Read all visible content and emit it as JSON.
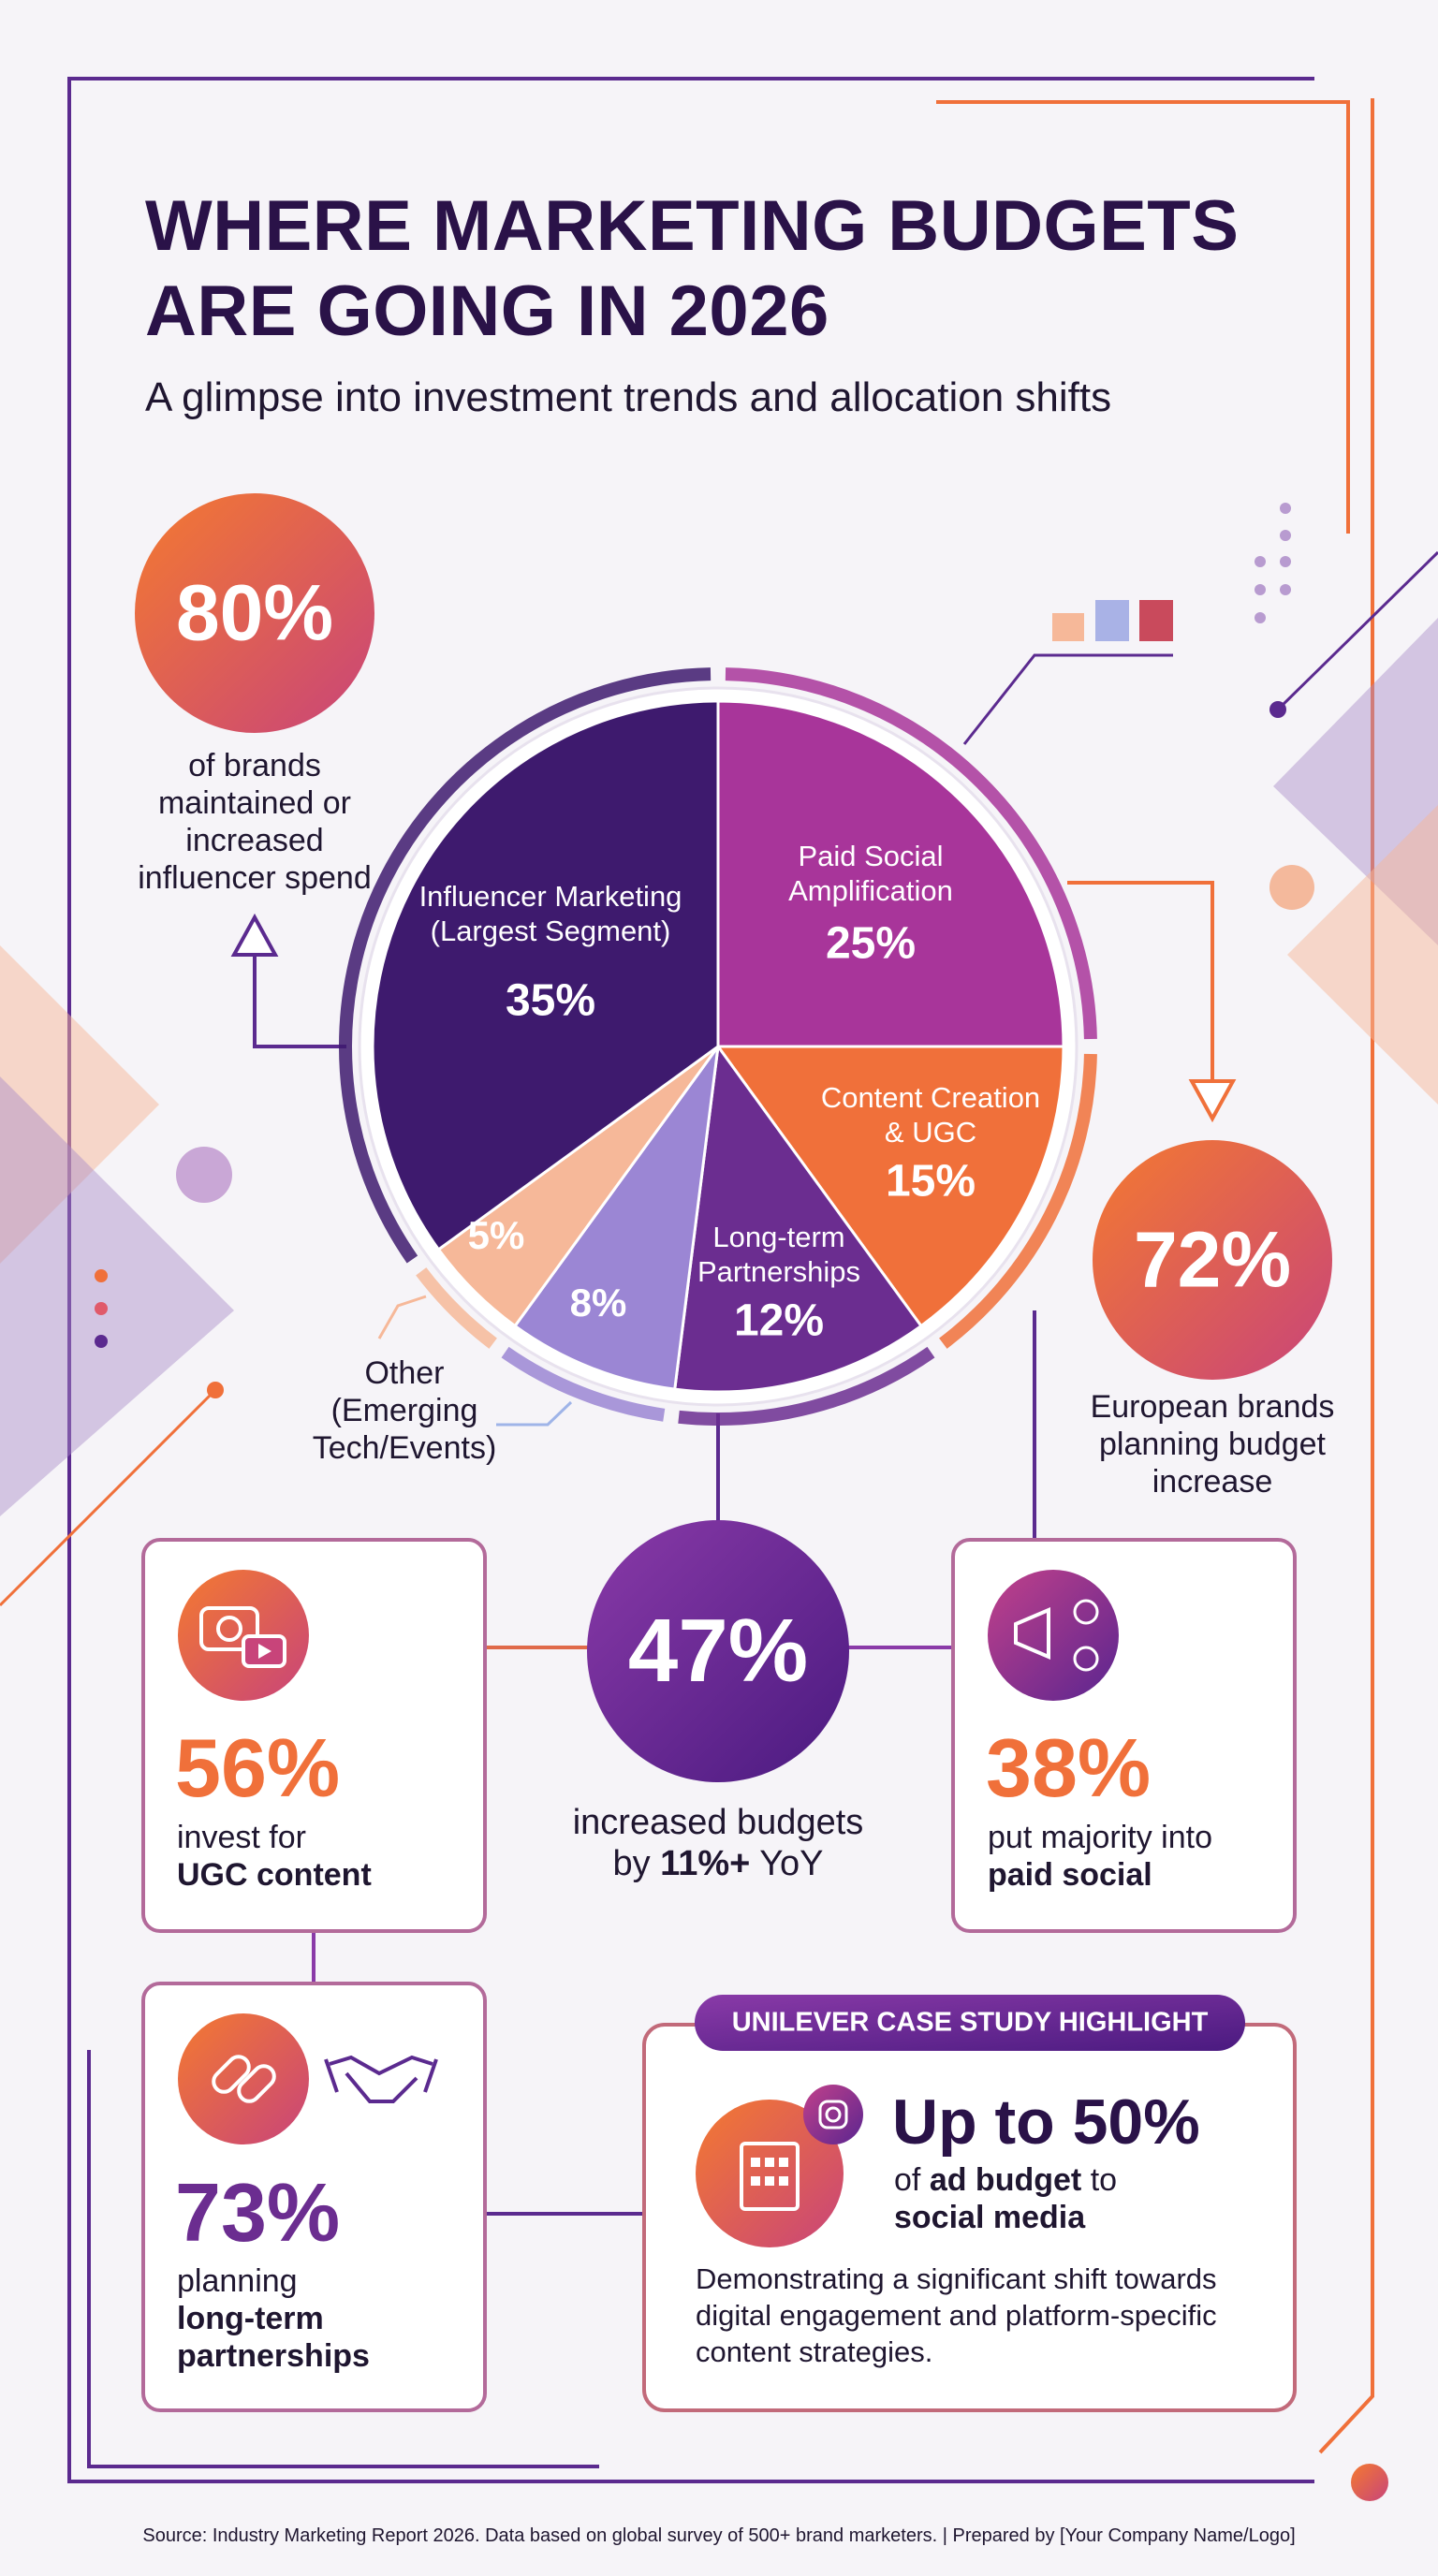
{
  "header": {
    "title_lines": [
      "WHERE MARKETING BUDGETS",
      "ARE GOING IN 2026"
    ],
    "subtitle": "A glimpse into investment trends and allocation shifts"
  },
  "chart_data": {
    "type": "pie",
    "categories": [
      "Paid Social Amplification",
      "Content Creation & UGC",
      "Long-term Partnerships",
      null,
      "Other (Emerging Tech/Events)",
      "Influencer Marketing (Largest Segment)"
    ],
    "values": [
      25,
      15,
      12,
      8,
      5,
      35
    ],
    "value_labels": [
      "25%",
      "15%",
      "12%",
      "8%",
      "5%",
      "35%"
    ],
    "colors": [
      "#a8359a",
      "#f0703a",
      "#6b2d90",
      "#9b86d4",
      "#f6b899",
      "#3e1a6e"
    ]
  },
  "callouts": {
    "brands": {
      "value": "80%",
      "text": "of brands maintained or increased influencer spend"
    },
    "european": {
      "value": "72%",
      "text": "European brands planning budget increase"
    },
    "budgets": {
      "value": "47%",
      "parts": [
        "increased budgets by",
        "11%+",
        "YoY"
      ]
    },
    "ugc": {
      "value": "56%",
      "text": "invest for",
      "bold": "UGC content"
    },
    "paid": {
      "value": "38%",
      "text": "put majority into",
      "bold": "paid social"
    },
    "partnerships": {
      "value": "73%",
      "text": "planning",
      "bold": "long-term partnerships"
    }
  },
  "case_study": {
    "badge": "UNILEVER CASE STUDY HIGHLIGHT",
    "headline": "Up to 50%",
    "parts": [
      "of",
      "ad budget",
      "to",
      "social media"
    ],
    "description": "Demonstrating a significant shift towards digital engagement and platform-specific content strategies."
  },
  "footer": "Source: Industry Marketing Report 2026. Data based on global survey of 500+ brand marketers. | Prepared by [Your Company Name/Logo]"
}
